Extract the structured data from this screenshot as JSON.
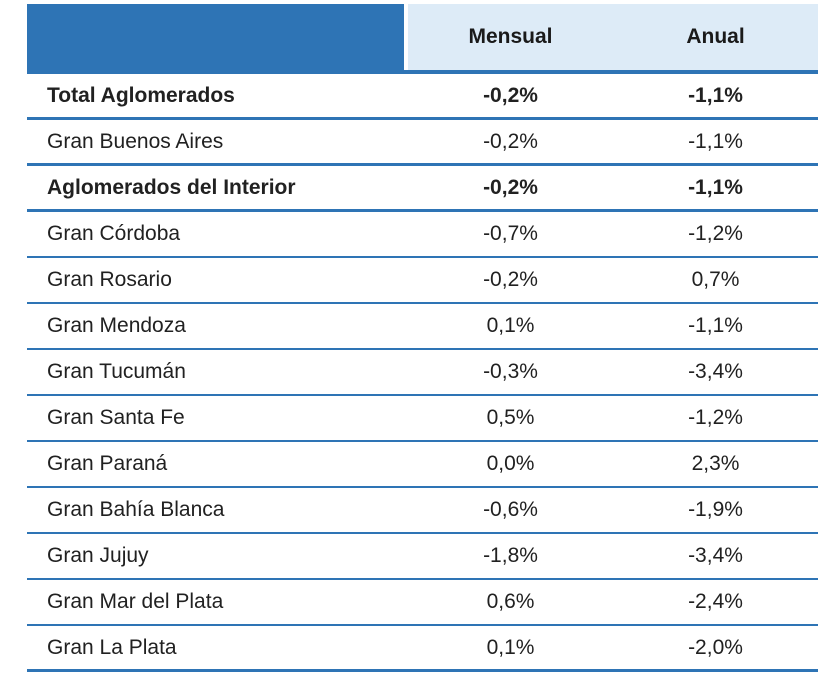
{
  "colors": {
    "accent_blue": "#2e74b5",
    "header_light_blue": "#ddebf7",
    "text": "#212121"
  },
  "chart_data": {
    "type": "table",
    "columns": [
      "Mensual",
      "Anual"
    ],
    "rows": [
      {
        "label": "Total Aglomerados",
        "mensual": "-0,2%",
        "anual": "-1,1%"
      },
      {
        "label": "Gran Buenos Aires",
        "mensual": "-0,2%",
        "anual": "-1,1%"
      },
      {
        "label": "Aglomerados del Interior",
        "mensual": "-0,2%",
        "anual": "-1,1%"
      },
      {
        "label": "Gran Córdoba",
        "mensual": "-0,7%",
        "anual": "-1,2%"
      },
      {
        "label": "Gran Rosario",
        "mensual": "-0,2%",
        "anual": "0,7%"
      },
      {
        "label": "Gran Mendoza",
        "mensual": "0,1%",
        "anual": "-1,1%"
      },
      {
        "label": "Gran Tucumán",
        "mensual": "-0,3%",
        "anual": "-3,4%"
      },
      {
        "label": "Gran Santa Fe",
        "mensual": "0,5%",
        "anual": "-1,2%"
      },
      {
        "label": "Gran Paraná",
        "mensual": "0,0%",
        "anual": "2,3%"
      },
      {
        "label": "Gran Bahía Blanca",
        "mensual": "-0,6%",
        "anual": "-1,9%"
      },
      {
        "label": "Gran Jujuy",
        "mensual": "-1,8%",
        "anual": "-3,4%"
      },
      {
        "label": "Gran Mar del Plata",
        "mensual": "0,6%",
        "anual": "-2,4%"
      },
      {
        "label": "Gran La Plata",
        "mensual": "0,1%",
        "anual": "-2,0%"
      }
    ],
    "categories": [
      "Total Aglomerados",
      "Gran Buenos Aires",
      "Aglomerados del Interior",
      "Gran Córdoba",
      "Gran Rosario",
      "Gran Mendoza",
      "Gran Tucumán",
      "Gran Santa Fe",
      "Gran Paraná",
      "Gran Bahía Blanca",
      "Gran Jujuy",
      "Gran Mar del Plata",
      "Gran La Plata"
    ],
    "series": [
      {
        "name": "Mensual",
        "values": [
          -0.2,
          -0.2,
          -0.2,
          -0.7,
          -0.2,
          0.1,
          -0.3,
          0.5,
          0.0,
          -0.6,
          -1.8,
          0.6,
          0.1
        ]
      },
      {
        "name": "Anual",
        "values": [
          -1.1,
          -1.1,
          -1.1,
          -1.2,
          0.7,
          -1.1,
          -3.4,
          -1.2,
          2.3,
          -1.9,
          -3.4,
          -2.4,
          -2.0
        ]
      }
    ],
    "title": "",
    "unit": "%"
  }
}
